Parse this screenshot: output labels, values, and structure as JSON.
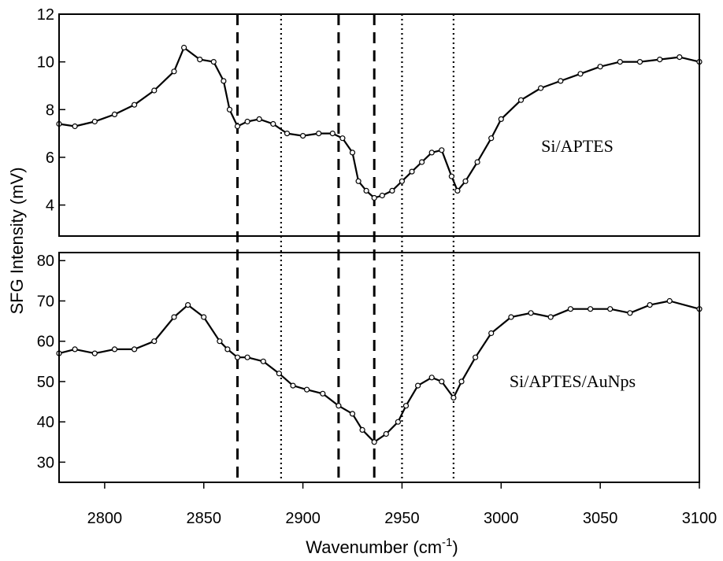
{
  "chart_data": {
    "type": "line",
    "xlabel": "Wavenumber (cm",
    "xlabel_sup": "-1",
    "xlabel_close": ")",
    "ylabel": "SFG Intensity (mV)",
    "xlim": [
      2777,
      3100
    ],
    "x_ticks": [
      2800,
      2850,
      2900,
      2950,
      3000,
      3050,
      3100
    ],
    "grid": false,
    "reference_lines": {
      "dashed": [
        2867,
        2918,
        2936
      ],
      "dotted": [
        2889,
        2950,
        2976
      ]
    },
    "panels": [
      {
        "label": "Si/APTES",
        "ylim": [
          2.7,
          12
        ],
        "y_ticks": [
          4,
          6,
          8,
          10,
          12
        ],
        "series": {
          "x": [
            2777,
            2785,
            2795,
            2805,
            2815,
            2825,
            2835,
            2840,
            2848,
            2855,
            2860,
            2863,
            2867,
            2872,
            2878,
            2885,
            2892,
            2900,
            2908,
            2915,
            2920,
            2925,
            2928,
            2932,
            2936,
            2940,
            2945,
            2950,
            2955,
            2960,
            2965,
            2970,
            2975,
            2978,
            2982,
            2988,
            2995,
            3000,
            3010,
            3020,
            3030,
            3040,
            3050,
            3060,
            3070,
            3080,
            3090,
            3100
          ],
          "y": [
            7.4,
            7.3,
            7.5,
            7.8,
            8.2,
            8.8,
            9.6,
            10.6,
            10.1,
            10.0,
            9.2,
            8.0,
            7.3,
            7.5,
            7.6,
            7.4,
            7.0,
            6.9,
            7.0,
            7.0,
            6.8,
            6.2,
            5.0,
            4.6,
            4.3,
            4.4,
            4.6,
            5.0,
            5.4,
            5.8,
            6.2,
            6.3,
            5.2,
            4.6,
            5.0,
            5.8,
            6.8,
            7.6,
            8.4,
            8.9,
            9.2,
            9.5,
            9.8,
            10.0,
            10.0,
            10.1,
            10.2,
            10.0
          ]
        }
      },
      {
        "label": "Si/APTES/AuNps",
        "ylim": [
          25,
          82
        ],
        "y_ticks": [
          30,
          40,
          50,
          60,
          70,
          80
        ],
        "series": {
          "x": [
            2777,
            2785,
            2795,
            2805,
            2815,
            2825,
            2835,
            2842,
            2850,
            2858,
            2862,
            2867,
            2872,
            2880,
            2888,
            2895,
            2902,
            2910,
            2918,
            2925,
            2930,
            2936,
            2942,
            2948,
            2952,
            2958,
            2965,
            2970,
            2976,
            2980,
            2987,
            2995,
            3005,
            3015,
            3025,
            3035,
            3045,
            3055,
            3065,
            3075,
            3085,
            3100
          ],
          "y": [
            57,
            58,
            57,
            58,
            58,
            60,
            66,
            69,
            66,
            60,
            58,
            56,
            56,
            55,
            52,
            49,
            48,
            47,
            44,
            42,
            38,
            35,
            37,
            40,
            44,
            49,
            51,
            50,
            46,
            50,
            56,
            62,
            66,
            67,
            66,
            68,
            68,
            68,
            67,
            69,
            70,
            68
          ]
        }
      }
    ]
  }
}
